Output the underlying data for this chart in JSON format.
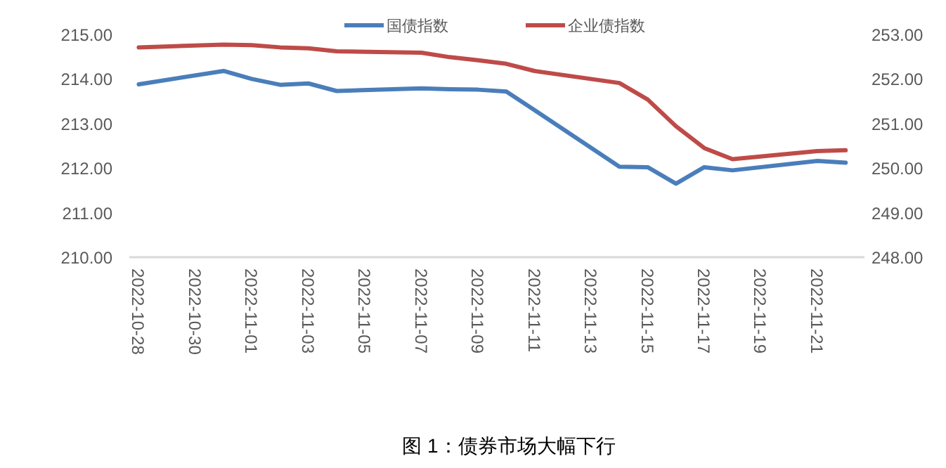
{
  "chart_data": {
    "type": "line",
    "x": [
      "2022-10-28",
      "2022-10-31",
      "2022-11-01",
      "2022-11-02",
      "2022-11-03",
      "2022-11-04",
      "2022-11-07",
      "2022-11-08",
      "2022-11-09",
      "2022-11-10",
      "2022-11-11",
      "2022-11-14",
      "2022-11-15",
      "2022-11-16",
      "2022-11-17",
      "2022-11-18",
      "2022-11-21",
      "2022-11-22"
    ],
    "series": [
      {
        "name": "国债指数",
        "color": "#4a7ebb",
        "values": [
          213.88,
          214.18,
          214.0,
          213.87,
          213.9,
          213.73,
          213.79,
          213.77,
          213.76,
          213.72,
          213.3,
          212.03,
          212.02,
          211.65,
          212.02,
          211.95,
          212.16,
          212.12
        ]
      },
      {
        "name": "企业债指数",
        "color": "#be4b48",
        "axis": "y2",
        "values": [
          252.71,
          252.77,
          252.76,
          252.71,
          252.69,
          252.62,
          252.59,
          252.49,
          252.42,
          252.34,
          252.18,
          251.91,
          251.54,
          250.94,
          250.45,
          250.2,
          250.38,
          250.4
        ]
      }
    ],
    "xlim": [
      "2022-10-27T16:00",
      "2022-11-22T16:00"
    ],
    "xticks": [
      "2022-10-28",
      "2022-10-30",
      "2022-11-01",
      "2022-11-03",
      "2022-11-05",
      "2022-11-07",
      "2022-11-09",
      "2022-11-11",
      "2022-11-13",
      "2022-11-15",
      "2022-11-17",
      "2022-11-19",
      "2022-11-21"
    ],
    "ylim": [
      210,
      215
    ],
    "yticks": [
      {
        "value": 210,
        "label": "210.00"
      },
      {
        "value": 211,
        "label": "211.00"
      },
      {
        "value": 212,
        "label": "212.00"
      },
      {
        "value": 213,
        "label": "213.00"
      },
      {
        "value": 214,
        "label": "214.00"
      },
      {
        "value": 215,
        "label": "215.00"
      }
    ],
    "y2lim": [
      248,
      253
    ],
    "y2ticks": [
      {
        "value": 248,
        "label": "248.00"
      },
      {
        "value": 249,
        "label": "249.00"
      },
      {
        "value": 250,
        "label": "250.00"
      },
      {
        "value": 251,
        "label": "251.00"
      },
      {
        "value": 252,
        "label": "252.00"
      },
      {
        "value": 253,
        "label": "253.00"
      }
    ],
    "legend": "top",
    "grid": false,
    "marker": "none",
    "line_style": "solid",
    "annotations": [
      "图 1：债券市场大幅下行"
    ]
  }
}
